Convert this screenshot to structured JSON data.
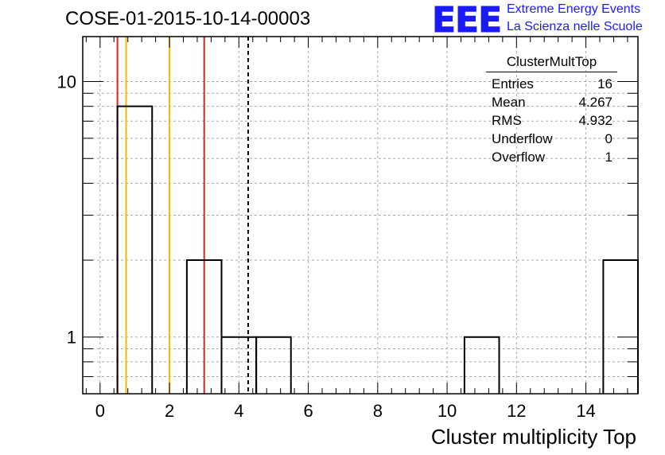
{
  "title": "COSE-01-2015-10-14-00003",
  "logo": {
    "mark": "EEE",
    "line1": "Extreme Energy Events",
    "line2": "La Scienza nelle Scuole"
  },
  "stats": {
    "name": "ClusterMultTop",
    "rows": [
      {
        "label": "Entries",
        "value": "16"
      },
      {
        "label": "Mean",
        "value": "4.267"
      },
      {
        "label": "RMS",
        "value": "4.932"
      },
      {
        "label": "Underflow",
        "value": "0"
      },
      {
        "label": "Overflow",
        "value": "1"
      }
    ]
  },
  "chart_data": {
    "type": "histogram",
    "xlabel": "Cluster multiplicity Top",
    "ylabel": "",
    "xlim": [
      -0.5,
      15.5
    ],
    "ylim": [
      0.6,
      15
    ],
    "ylog": true,
    "grid": true,
    "xticks": [
      0,
      2,
      4,
      6,
      8,
      10,
      12,
      14
    ],
    "yticks": [
      1,
      10
    ],
    "bin_width": 1,
    "bins": [
      {
        "x": 0,
        "count": 0
      },
      {
        "x": 1,
        "count": 8
      },
      {
        "x": 2,
        "count": 0
      },
      {
        "x": 3,
        "count": 2
      },
      {
        "x": 4,
        "count": 1
      },
      {
        "x": 5,
        "count": 1
      },
      {
        "x": 6,
        "count": 0
      },
      {
        "x": 7,
        "count": 0
      },
      {
        "x": 8,
        "count": 0
      },
      {
        "x": 9,
        "count": 0
      },
      {
        "x": 10,
        "count": 0
      },
      {
        "x": 11,
        "count": 1
      },
      {
        "x": 12,
        "count": 0
      },
      {
        "x": 13,
        "count": 0
      },
      {
        "x": 14,
        "count": 0
      },
      {
        "x": 15,
        "count": 2
      }
    ],
    "vertical_lines": [
      {
        "x": 0.5,
        "color": "#e0201e",
        "style": "solid"
      },
      {
        "x": 0.75,
        "color": "#ffb400",
        "style": "solid"
      },
      {
        "x": 2.0,
        "color": "#ffb400",
        "style": "solid"
      },
      {
        "x": 3.0,
        "color": "#e0201e",
        "style": "solid"
      },
      {
        "x": 4.267,
        "color": "#000000",
        "style": "dashed"
      }
    ],
    "colors": {
      "line": "#000000",
      "grid": "#aaaaaa"
    }
  }
}
